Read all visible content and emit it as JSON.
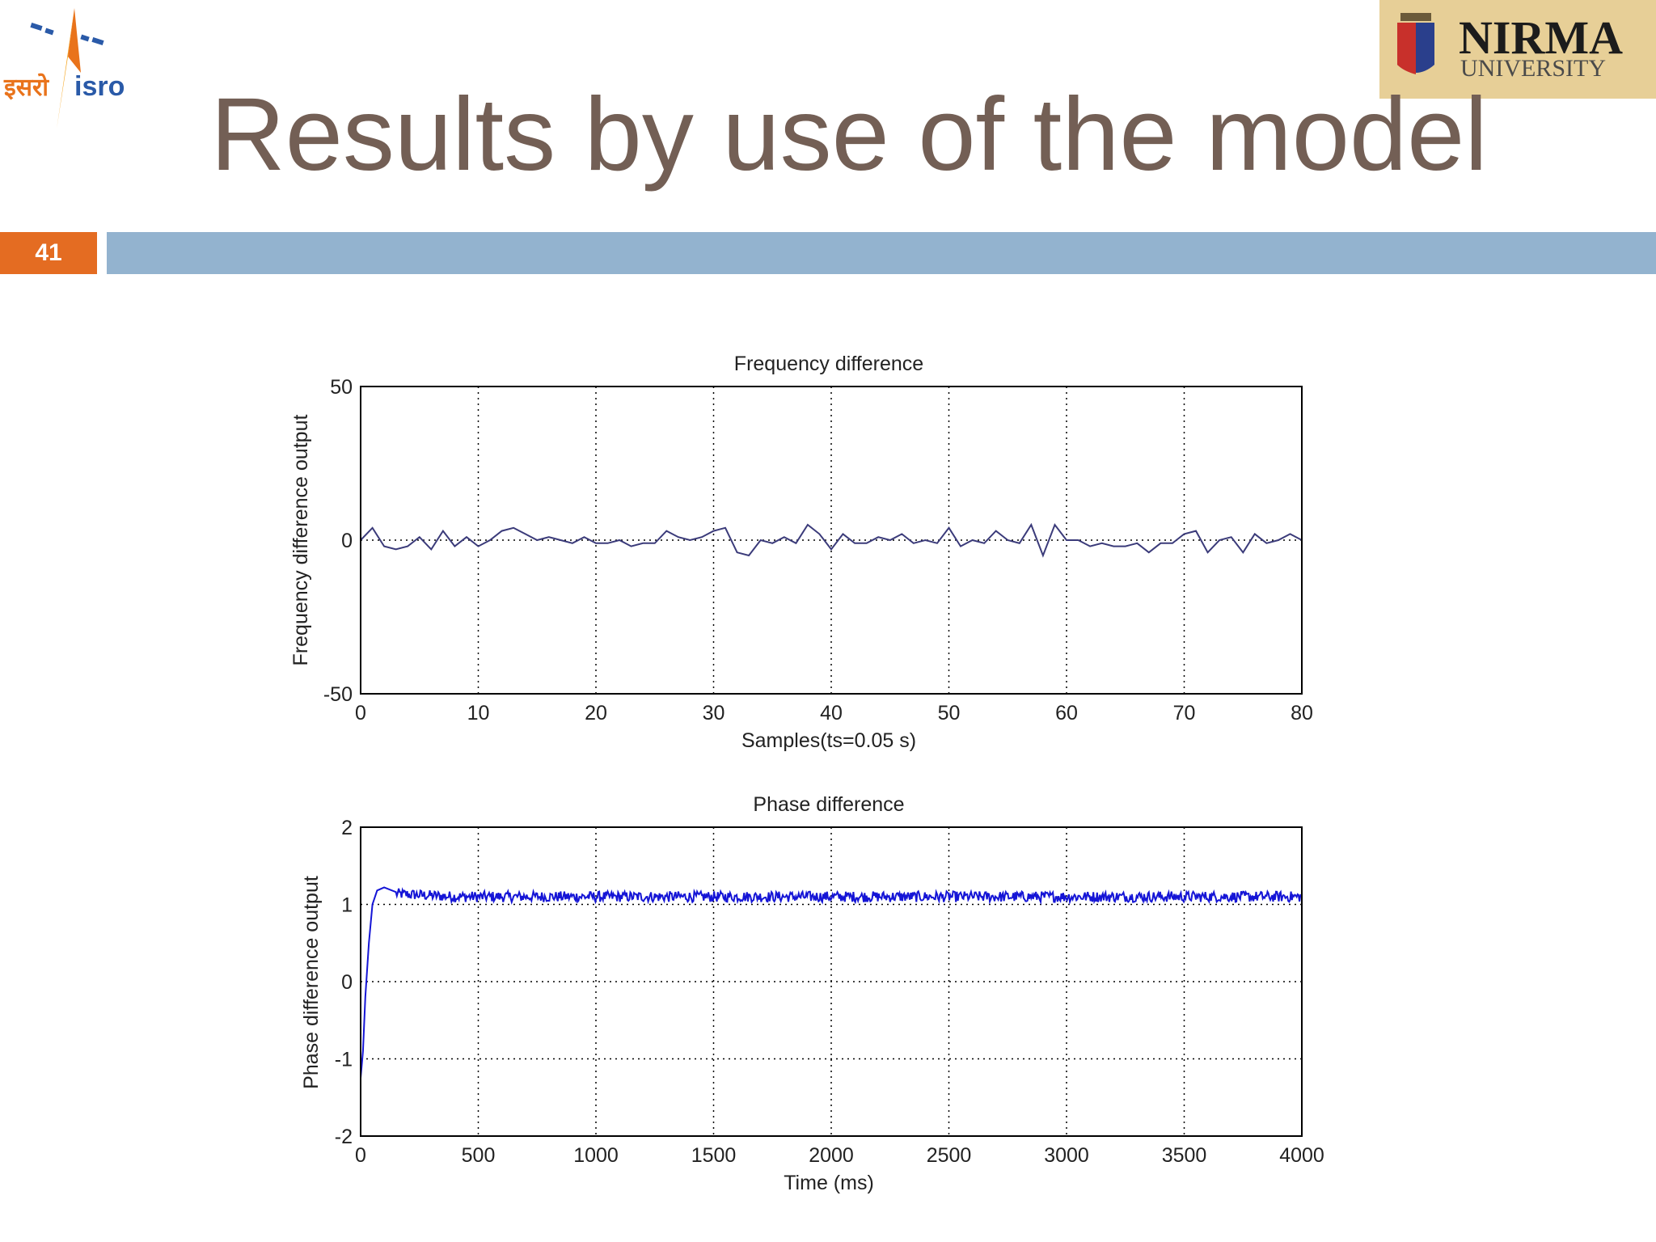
{
  "slide": {
    "title": "Results by use of the model",
    "number": "41",
    "title_color": "#735f55",
    "number_bg": "#e46c22",
    "bar_color": "#93b3cf"
  },
  "logos": {
    "isro": {
      "hindi_text": "इसरो",
      "latin_text": "isro"
    },
    "nirma": {
      "name": "NIRMA",
      "sub": "UNIVERSITY"
    }
  },
  "chart_data": [
    {
      "type": "line",
      "title": "Frequency difference",
      "xlabel": "Samples(ts=0.05 s)",
      "ylabel": "Frequency difference output",
      "xlim": [
        0,
        80
      ],
      "ylim": [
        -50,
        50
      ],
      "xticks": [
        "0",
        "10",
        "20",
        "30",
        "40",
        "50",
        "60",
        "70",
        "80"
      ],
      "yticks": [
        "50",
        "0",
        "-50"
      ],
      "grid": true,
      "line_color": "#3b3b7a",
      "x": [
        0,
        1,
        2,
        3,
        4,
        5,
        6,
        7,
        8,
        9,
        10,
        11,
        12,
        13,
        14,
        15,
        16,
        17,
        18,
        19,
        20,
        21,
        22,
        23,
        24,
        25,
        26,
        27,
        28,
        29,
        30,
        31,
        32,
        33,
        34,
        35,
        36,
        37,
        38,
        39,
        40,
        41,
        42,
        43,
        44,
        45,
        46,
        47,
        48,
        49,
        50,
        51,
        52,
        53,
        54,
        55,
        56,
        57,
        58,
        59,
        60,
        61,
        62,
        63,
        64,
        65,
        66,
        67,
        68,
        69,
        70,
        71,
        72,
        73,
        74,
        75,
        76,
        77,
        78,
        79,
        80
      ],
      "y": [
        0,
        4,
        -2,
        -3,
        -2,
        1,
        -3,
        3,
        -2,
        1,
        -2,
        0,
        3,
        4,
        2,
        0,
        1,
        0,
        -1,
        1,
        -1,
        -1,
        0,
        -2,
        -1,
        -1,
        3,
        1,
        0,
        1,
        3,
        4,
        -4,
        -5,
        0,
        -1,
        1,
        -1,
        5,
        2,
        -3,
        2,
        -1,
        -1,
        1,
        0,
        2,
        -1,
        0,
        -1,
        4,
        -2,
        0,
        -1,
        3,
        0,
        -1,
        5,
        -5,
        5,
        0,
        0,
        -2,
        -1,
        -2,
        -2,
        -1,
        -4,
        -1,
        -1,
        2,
        3,
        -4,
        0,
        1,
        -4,
        2,
        -1,
        0,
        2,
        0
      ],
      "note_y": "values estimated from plot"
    },
    {
      "type": "line",
      "title": "Phase difference",
      "xlabel": "Time (ms)",
      "ylabel": "Phase difference output",
      "xlim": [
        0,
        4000
      ],
      "ylim": [
        -2,
        2
      ],
      "xticks": [
        "0",
        "500",
        "1000",
        "1500",
        "2000",
        "2500",
        "3000",
        "3500",
        "4000"
      ],
      "yticks": [
        "2",
        "1",
        "0",
        "-1",
        "-2"
      ],
      "grid": true,
      "line_color": "#1515d6",
      "transient_x": [
        0,
        10,
        20,
        35,
        50,
        70,
        100,
        150
      ],
      "transient_y": [
        -1.25,
        -0.9,
        -0.2,
        0.5,
        1.0,
        1.18,
        1.22,
        1.16
      ],
      "steady_level": 1.1,
      "noise_amplitude": 0.07
    }
  ]
}
